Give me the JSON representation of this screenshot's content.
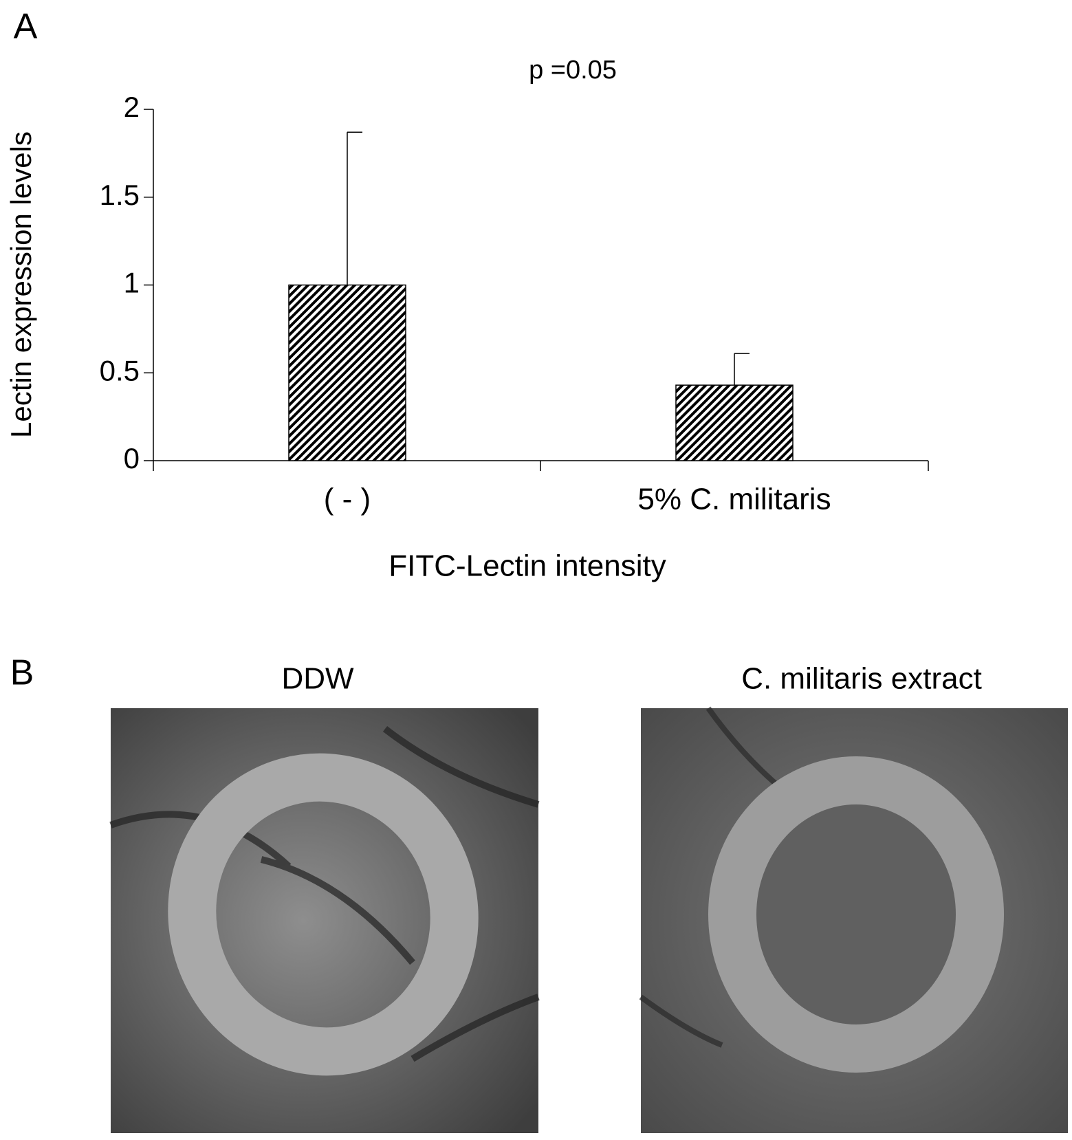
{
  "chart_data": {
    "type": "bar",
    "panel_label": "A",
    "annotation": "p =0.05",
    "y_label": "Lectin expression levels",
    "x_label": "FITC-Lectin intensity",
    "categories": [
      "( - )",
      "5% C. militaris"
    ],
    "values": [
      1,
      0.43
    ],
    "errors": [
      0.87,
      0.18
    ],
    "color": "#000000",
    "ylim": [
      0,
      2
    ],
    "yticks": [
      0,
      0.5,
      1,
      1.5,
      2
    ],
    "grid": false
  },
  "panel_b": {
    "label": "B",
    "images": [
      {
        "title": "DDW"
      },
      {
        "title": "C. militaris extract"
      }
    ]
  }
}
